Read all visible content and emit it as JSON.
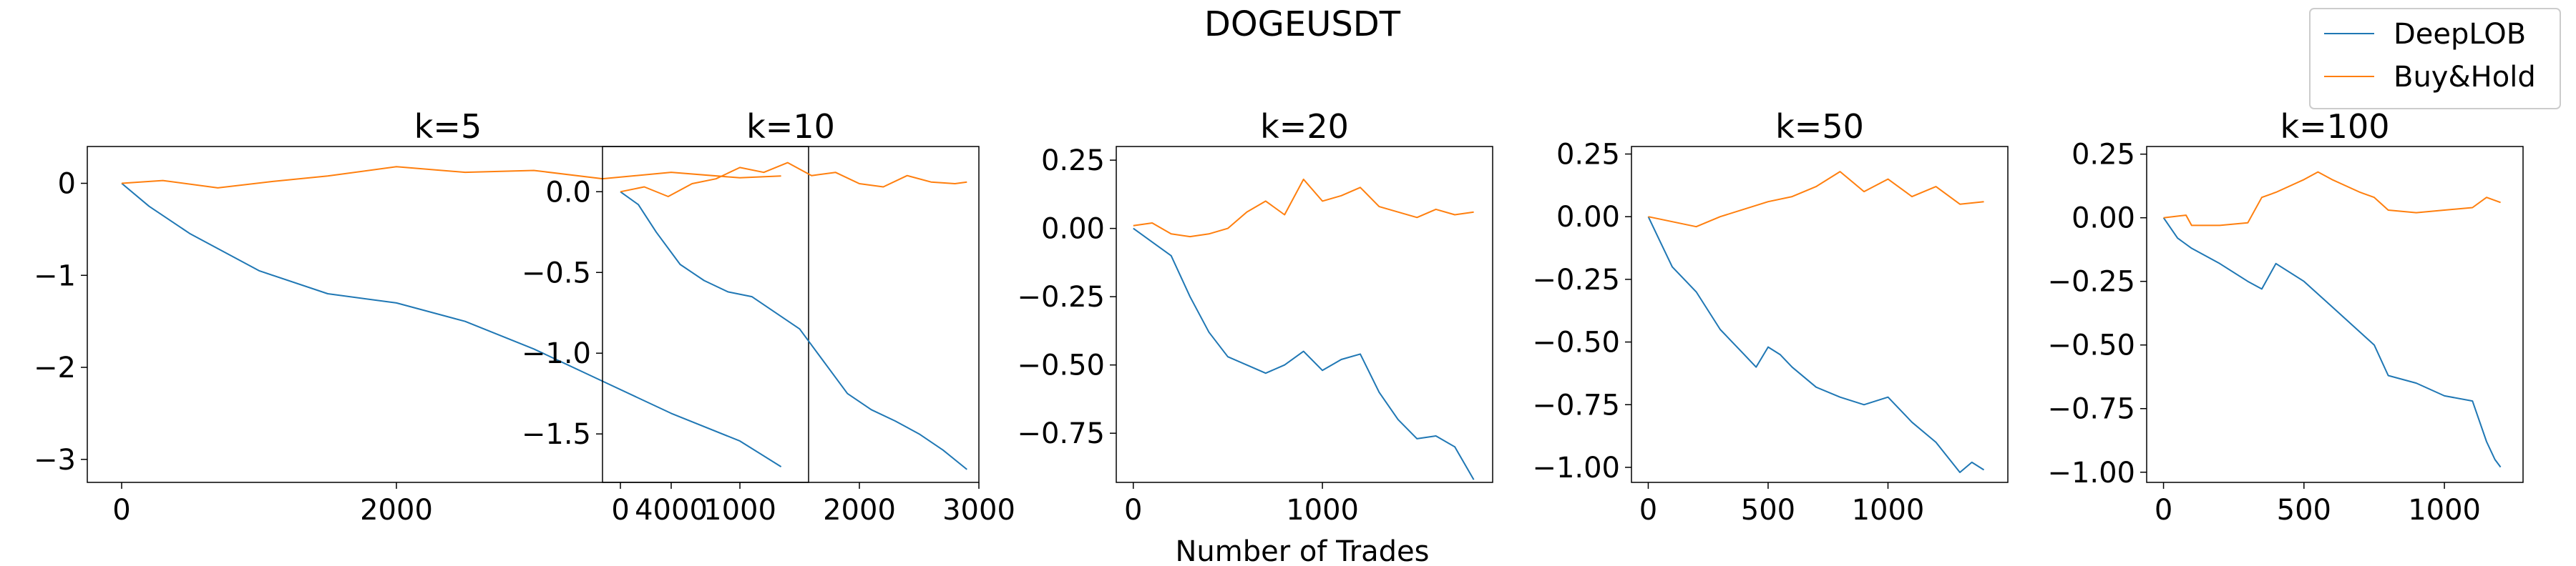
{
  "suptitle": "DOGEUSDT",
  "xlabel": "Number of Trades",
  "legend": [
    {
      "name": "DeepLOB",
      "color": "#1f77b4"
    },
    {
      "name": "Buy&Hold",
      "color": "#ff7f0e"
    }
  ],
  "chart_data": [
    {
      "type": "line",
      "title": "k=5",
      "xlim": [
        -250,
        5000
      ],
      "ylim": [
        -3.25,
        0.4
      ],
      "xticks": [
        0,
        2000,
        4000
      ],
      "xtick_labels": [
        "0",
        "2000",
        "4000"
      ],
      "yticks": [
        0,
        -1,
        -2,
        -3
      ],
      "ytick_labels": [
        "0",
        "−1",
        "−2",
        "−3"
      ],
      "series": [
        {
          "name": "DeepLOB",
          "color": "#1f77b4",
          "x": [
            0,
            200,
            500,
            1000,
            1500,
            2000,
            2500,
            3000,
            3500,
            4000,
            4500,
            4800
          ],
          "y": [
            0,
            -0.25,
            -0.55,
            -0.95,
            -1.2,
            -1.3,
            -1.5,
            -1.8,
            -2.15,
            -2.5,
            -2.8,
            -3.08
          ]
        },
        {
          "name": "Buy&Hold",
          "color": "#ff7f0e",
          "x": [
            0,
            300,
            700,
            1100,
            1500,
            2000,
            2500,
            3000,
            3500,
            4000,
            4500,
            4800
          ],
          "y": [
            0,
            0.03,
            -0.05,
            0.02,
            0.08,
            0.18,
            0.12,
            0.14,
            0.05,
            0.12,
            0.06,
            0.08
          ]
        }
      ]
    },
    {
      "type": "line",
      "title": "k=10",
      "xlim": [
        -150,
        3000
      ],
      "ylim": [
        -1.8,
        0.28
      ],
      "xticks": [
        0,
        1000,
        2000,
        3000
      ],
      "xtick_labels": [
        "0",
        "1000",
        "2000",
        "3000"
      ],
      "yticks": [
        0.0,
        -0.5,
        -1.0,
        -1.5
      ],
      "ytick_labels": [
        "0.0",
        "−0.5",
        "−1.0",
        "−1.5"
      ],
      "series": [
        {
          "name": "DeepLOB",
          "color": "#1f77b4",
          "x": [
            0,
            150,
            300,
            500,
            700,
            900,
            1100,
            1300,
            1500,
            1700,
            1900,
            2100,
            2300,
            2500,
            2700,
            2900
          ],
          "y": [
            0,
            -0.08,
            -0.25,
            -0.45,
            -0.55,
            -0.62,
            -0.65,
            -0.75,
            -0.85,
            -1.05,
            -1.25,
            -1.35,
            -1.42,
            -1.5,
            -1.6,
            -1.72
          ]
        },
        {
          "name": "Buy&Hold",
          "color": "#ff7f0e",
          "x": [
            0,
            200,
            400,
            600,
            800,
            1000,
            1200,
            1400,
            1600,
            1800,
            2000,
            2200,
            2400,
            2600,
            2800,
            2900
          ],
          "y": [
            0,
            0.03,
            -0.03,
            0.05,
            0.08,
            0.15,
            0.12,
            0.18,
            0.1,
            0.12,
            0.05,
            0.03,
            0.1,
            0.06,
            0.05,
            0.06
          ]
        }
      ]
    },
    {
      "type": "line",
      "title": "k=20",
      "xlim": [
        -90,
        1900
      ],
      "ylim": [
        -0.93,
        0.3
      ],
      "xticks": [
        0,
        1000
      ],
      "xtick_labels": [
        "0",
        "1000"
      ],
      "yticks": [
        0.25,
        0.0,
        -0.25,
        -0.5,
        -0.75
      ],
      "ytick_labels": [
        "0.25",
        "0.00",
        "−0.25",
        "−0.50",
        "−0.75"
      ],
      "series": [
        {
          "name": "DeepLOB",
          "color": "#1f77b4",
          "x": [
            0,
            100,
            200,
            300,
            400,
            500,
            600,
            700,
            800,
            900,
            1000,
            1100,
            1200,
            1300,
            1400,
            1500,
            1600,
            1700,
            1800
          ],
          "y": [
            0,
            -0.05,
            -0.1,
            -0.25,
            -0.38,
            -0.47,
            -0.5,
            -0.53,
            -0.5,
            -0.45,
            -0.52,
            -0.48,
            -0.46,
            -0.6,
            -0.7,
            -0.77,
            -0.76,
            -0.8,
            -0.92
          ]
        },
        {
          "name": "Buy&Hold",
          "color": "#ff7f0e",
          "x": [
            0,
            100,
            200,
            300,
            400,
            500,
            600,
            700,
            800,
            900,
            1000,
            1100,
            1200,
            1300,
            1400,
            1500,
            1600,
            1700,
            1800
          ],
          "y": [
            0.01,
            0.02,
            -0.02,
            -0.03,
            -0.02,
            0.0,
            0.06,
            0.1,
            0.05,
            0.18,
            0.1,
            0.12,
            0.15,
            0.08,
            0.06,
            0.04,
            0.07,
            0.05,
            0.06
          ]
        }
      ]
    },
    {
      "type": "line",
      "title": "k=50",
      "xlim": [
        -70,
        1500
      ],
      "ylim": [
        -1.06,
        0.28
      ],
      "xticks": [
        0,
        500,
        1000
      ],
      "xtick_labels": [
        "0",
        "500",
        "1000"
      ],
      "yticks": [
        0.25,
        0.0,
        -0.25,
        -0.5,
        -0.75,
        -1.0
      ],
      "ytick_labels": [
        "0.25",
        "0.00",
        "−0.25",
        "−0.50",
        "−0.75",
        "−1.00"
      ],
      "series": [
        {
          "name": "DeepLOB",
          "color": "#1f77b4",
          "x": [
            0,
            50,
            100,
            200,
            300,
            400,
            450,
            500,
            550,
            600,
            700,
            800,
            900,
            1000,
            1100,
            1200,
            1300,
            1350,
            1400
          ],
          "y": [
            0,
            -0.1,
            -0.2,
            -0.3,
            -0.45,
            -0.55,
            -0.6,
            -0.52,
            -0.55,
            -0.6,
            -0.68,
            -0.72,
            -0.75,
            -0.72,
            -0.82,
            -0.9,
            -1.02,
            -0.98,
            -1.01
          ]
        },
        {
          "name": "Buy&Hold",
          "color": "#ff7f0e",
          "x": [
            0,
            100,
            200,
            300,
            400,
            500,
            600,
            700,
            800,
            900,
            1000,
            1100,
            1200,
            1300,
            1400
          ],
          "y": [
            0,
            -0.02,
            -0.04,
            0.0,
            0.03,
            0.06,
            0.08,
            0.12,
            0.18,
            0.1,
            0.15,
            0.08,
            0.12,
            0.05,
            0.06
          ]
        }
      ]
    },
    {
      "type": "line",
      "title": "k=100",
      "xlim": [
        -60,
        1280
      ],
      "ylim": [
        -1.04,
        0.28
      ],
      "xticks": [
        0,
        500,
        1000
      ],
      "xtick_labels": [
        "0",
        "500",
        "1000"
      ],
      "yticks": [
        0.25,
        0.0,
        -0.25,
        -0.5,
        -0.75,
        -1.0
      ],
      "ytick_labels": [
        "0.25",
        "0.00",
        "−0.25",
        "−0.50",
        "−0.75",
        "−1.00"
      ],
      "series": [
        {
          "name": "DeepLOB",
          "color": "#1f77b4",
          "x": [
            0,
            50,
            100,
            200,
            300,
            350,
            400,
            500,
            600,
            700,
            750,
            800,
            900,
            1000,
            1100,
            1150,
            1180,
            1200
          ],
          "y": [
            0,
            -0.08,
            -0.12,
            -0.18,
            -0.25,
            -0.28,
            -0.18,
            -0.25,
            -0.35,
            -0.45,
            -0.5,
            -0.62,
            -0.65,
            -0.7,
            -0.72,
            -0.88,
            -0.95,
            -0.98
          ]
        },
        {
          "name": "Buy&Hold",
          "color": "#ff7f0e",
          "x": [
            0,
            80,
            100,
            200,
            300,
            350,
            400,
            500,
            550,
            600,
            700,
            750,
            800,
            900,
            1000,
            1100,
            1150,
            1200
          ],
          "y": [
            0,
            0.01,
            -0.03,
            -0.03,
            -0.02,
            0.08,
            0.1,
            0.15,
            0.18,
            0.15,
            0.1,
            0.08,
            0.03,
            0.02,
            0.03,
            0.04,
            0.08,
            0.06
          ]
        }
      ]
    }
  ]
}
